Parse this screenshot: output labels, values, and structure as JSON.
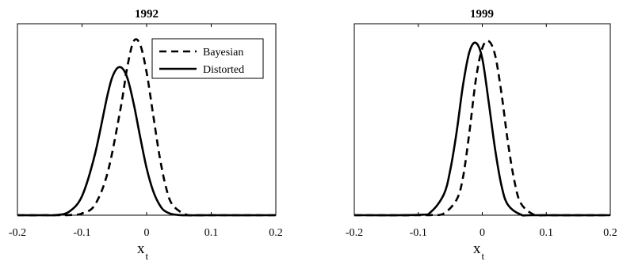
{
  "chart_data": [
    {
      "type": "line",
      "title": "1992",
      "xlabel_main": "x",
      "xlabel_sub": "t",
      "xlim": [
        -0.2,
        0.2
      ],
      "xticks": [
        -0.2,
        -0.1,
        0,
        0.1,
        0.2
      ],
      "xtick_labels": [
        "-0.2",
        "-0.1",
        "0",
        "0.1",
        "0.2"
      ],
      "ylim": [
        0,
        1.1
      ],
      "grid": false,
      "legend": {
        "placement": "top-right",
        "entries": [
          "Bayesian",
          "Distorted"
        ]
      },
      "series": [
        {
          "name": "Bayesian",
          "style": "dashed",
          "x": [
            -0.2,
            -0.16,
            -0.12,
            -0.1,
            -0.08,
            -0.06,
            -0.04,
            -0.03,
            -0.02,
            -0.01,
            0,
            0.01,
            0.02,
            0.03,
            0.04,
            0.06,
            0.08,
            0.1,
            0.2
          ],
          "y": [
            0,
            0,
            0.001,
            0.01,
            0.06,
            0.25,
            0.62,
            0.85,
            1.0,
            0.98,
            0.82,
            0.58,
            0.34,
            0.16,
            0.06,
            0.005,
            0,
            0,
            0
          ]
        },
        {
          "name": "Distorted",
          "style": "solid",
          "x": [
            -0.2,
            -0.16,
            -0.14,
            -0.12,
            -0.1,
            -0.08,
            -0.06,
            -0.05,
            -0.04,
            -0.03,
            -0.02,
            -0.01,
            0,
            0.01,
            0.02,
            0.03,
            0.05,
            0.1,
            0.2
          ],
          "y": [
            0,
            0,
            0.001,
            0.02,
            0.11,
            0.35,
            0.7,
            0.82,
            0.85,
            0.79,
            0.64,
            0.45,
            0.27,
            0.14,
            0.06,
            0.02,
            0.001,
            0,
            0
          ]
        }
      ]
    },
    {
      "type": "line",
      "title": "1999",
      "xlabel_main": "x",
      "xlabel_sub": "t",
      "xlim": [
        -0.2,
        0.2
      ],
      "xticks": [
        -0.2,
        -0.1,
        0,
        0.1,
        0.2
      ],
      "xtick_labels": [
        "-0.2",
        "-0.1",
        "0",
        "0.1",
        "0.2"
      ],
      "ylim": [
        0,
        1.1
      ],
      "grid": false,
      "legend": null,
      "series": [
        {
          "name": "Bayesian",
          "style": "dashed",
          "x": [
            -0.2,
            -0.1,
            -0.08,
            -0.06,
            -0.04,
            -0.03,
            -0.02,
            -0.01,
            0,
            0.01,
            0.02,
            0.03,
            0.04,
            0.05,
            0.06,
            0.08,
            0.1,
            0.2
          ],
          "y": [
            0,
            0,
            0.001,
            0.01,
            0.09,
            0.22,
            0.48,
            0.78,
            0.96,
            1.0,
            0.92,
            0.7,
            0.42,
            0.2,
            0.07,
            0.004,
            0,
            0
          ]
        },
        {
          "name": "Distorted",
          "style": "solid",
          "x": [
            -0.2,
            -0.1,
            -0.08,
            -0.06,
            -0.05,
            -0.04,
            -0.03,
            -0.02,
            -0.01,
            0,
            0.01,
            0.02,
            0.03,
            0.04,
            0.06,
            0.08,
            0.2
          ],
          "y": [
            0,
            0.002,
            0.02,
            0.12,
            0.26,
            0.48,
            0.75,
            0.94,
            0.99,
            0.9,
            0.65,
            0.38,
            0.17,
            0.06,
            0.004,
            0,
            0
          ]
        }
      ]
    }
  ]
}
